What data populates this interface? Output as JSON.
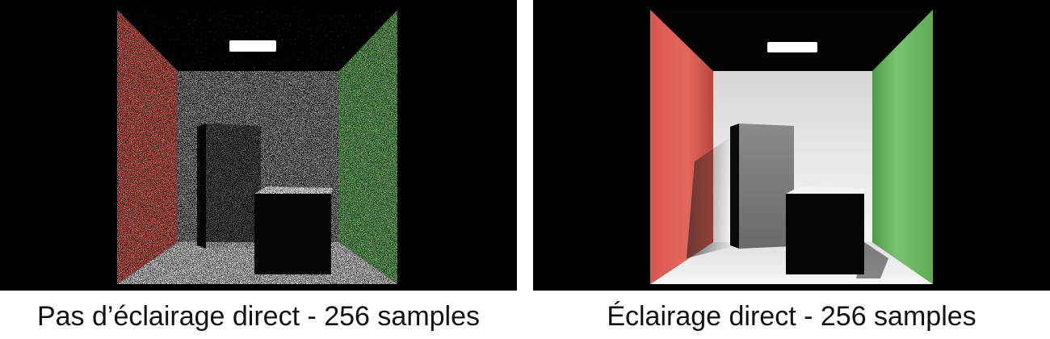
{
  "panels": [
    {
      "caption": "Pas d’éclairage direct - 256 samples",
      "style": "noisy",
      "colors": {
        "left_wall": "#e0655a",
        "right_wall": "#72c26a",
        "light": "#ffffff"
      }
    },
    {
      "caption": "Éclairage direct - 256 samples",
      "style": "clean",
      "colors": {
        "left_wall": "#e0655a",
        "right_wall": "#72c26a",
        "light": "#ffffff"
      }
    }
  ]
}
